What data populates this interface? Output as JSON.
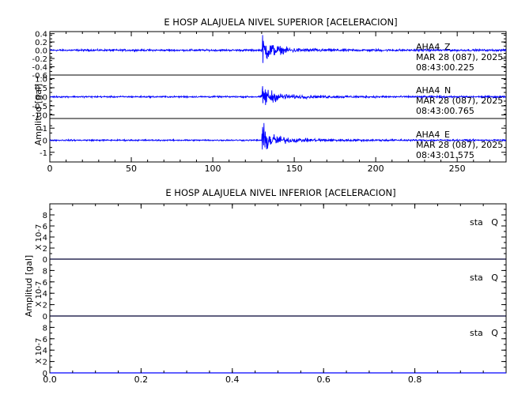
{
  "chart_data": [
    {
      "type": "line",
      "title": "E HOSP ALAJUELA NIVEL SUPERIOR [ACELERACION]",
      "ylabel": "Amplitud [gal]",
      "xlim": [
        0,
        280
      ],
      "xticks": [
        "0",
        "50",
        "100",
        "150",
        "200",
        "250"
      ],
      "line_color": "#0000ff",
      "event_onset_x": 130,
      "panels": [
        {
          "station": "AHA4",
          "channel": "Z",
          "date": "MAR 28 (087), 2025",
          "time": "08:43:00.225",
          "ylim": [
            -0.6,
            0.45
          ],
          "yticks": [
            "0.4",
            "0.2",
            "0.0",
            "-0.2",
            "-0.4",
            "-0.6"
          ],
          "noise_amp": 0.03,
          "peak_amp": 0.45
        },
        {
          "station": "AHA4",
          "channel": "N",
          "date": "MAR 28 (087), 2025",
          "time": "08:43:00.765",
          "ylim": [
            -1.2,
            1.2
          ],
          "yticks": [
            "1.0",
            "0.5",
            "0.0",
            "-0.5",
            "-1.0"
          ],
          "noise_amp": 0.06,
          "peak_amp": 0.9
        },
        {
          "station": "AHA4",
          "channel": "E",
          "date": "MAR 28 (087), 2025",
          "time": "08:43:01.575",
          "ylim": [
            -1.8,
            1.8
          ],
          "yticks": [
            "1",
            "0",
            "-1"
          ],
          "noise_amp": 0.08,
          "peak_amp": 1.7
        }
      ]
    },
    {
      "type": "line",
      "title": "E HOSP ALAJUELA NIVEL INFERIOR [ACELERACION]",
      "ylabel": "Amplitud [gal]",
      "xlim": [
        0,
        1
      ],
      "xticks": [
        "0.0",
        "0.2",
        "0.4",
        "0.6",
        "0.8"
      ],
      "line_color": "#0000ff",
      "panels": [
        {
          "label": "sta   Q",
          "scale": "X 10-7",
          "ylim": [
            0,
            10
          ],
          "yticks": [
            "8",
            "6",
            "4",
            "2",
            "0"
          ],
          "value": 0
        },
        {
          "label": "sta   Q",
          "scale": "X 10-7",
          "ylim": [
            0,
            10
          ],
          "yticks": [
            "8",
            "6",
            "4",
            "2",
            "0"
          ],
          "value": 0
        },
        {
          "label": "sta   Q",
          "scale": "X 10-7",
          "ylim": [
            0,
            10
          ],
          "yticks": [
            "8",
            "6",
            "4",
            "2",
            "0"
          ],
          "value": 0
        }
      ]
    }
  ]
}
